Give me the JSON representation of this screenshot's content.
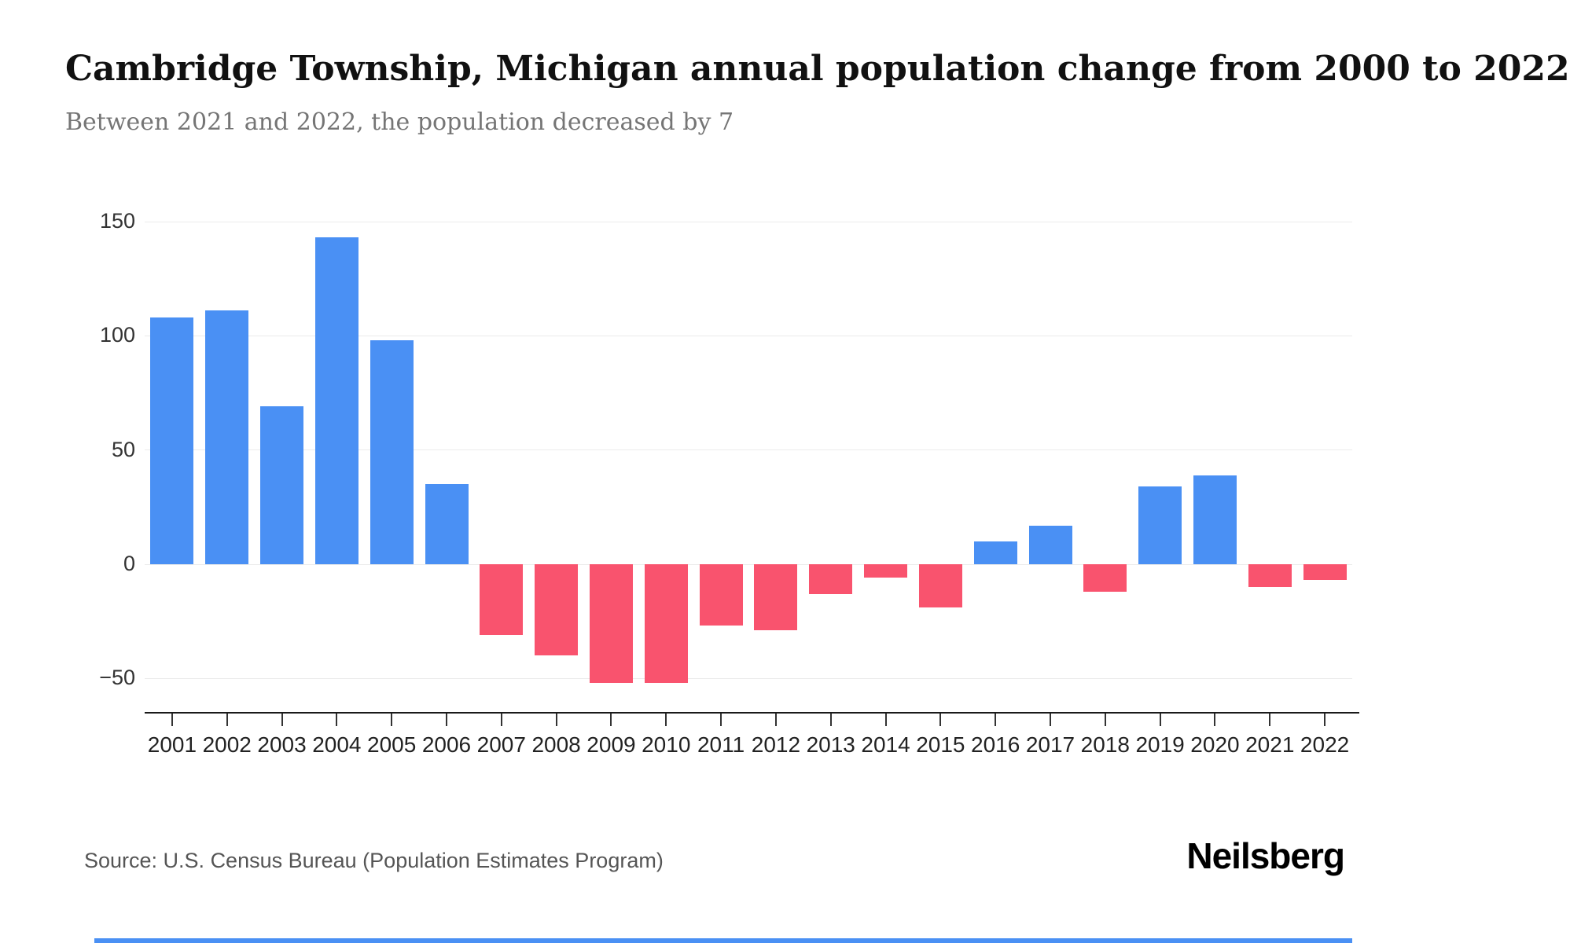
{
  "chart_data": {
    "type": "bar",
    "title": "Cambridge Township, Michigan annual population change from 2000 to 2022",
    "subtitle": "Between 2021 and 2022, the population decreased by 7",
    "categories": [
      "2001",
      "2002",
      "2003",
      "2004",
      "2005",
      "2006",
      "2007",
      "2008",
      "2009",
      "2010",
      "2011",
      "2012",
      "2013",
      "2014",
      "2015",
      "2016",
      "2017",
      "2018",
      "2019",
      "2020",
      "2021",
      "2022"
    ],
    "values": [
      108,
      111,
      69,
      143,
      98,
      35,
      -31,
      -40,
      -52,
      -52,
      -27,
      -29,
      -13,
      -6,
      -19,
      10,
      17,
      -12,
      34,
      39,
      -10,
      -7
    ],
    "yticks": [
      150,
      100,
      50,
      0,
      -50
    ],
    "ylim": [
      -62,
      160
    ],
    "xlabel": "",
    "ylabel": "",
    "grid": true,
    "legend": "none",
    "positive_color": "#4a90f4",
    "negative_color": "#f9536e"
  },
  "source": {
    "label": "Source: U.S. Census Bureau (Population Estimates Program)"
  },
  "brand": {
    "name": "Neilsberg"
  }
}
